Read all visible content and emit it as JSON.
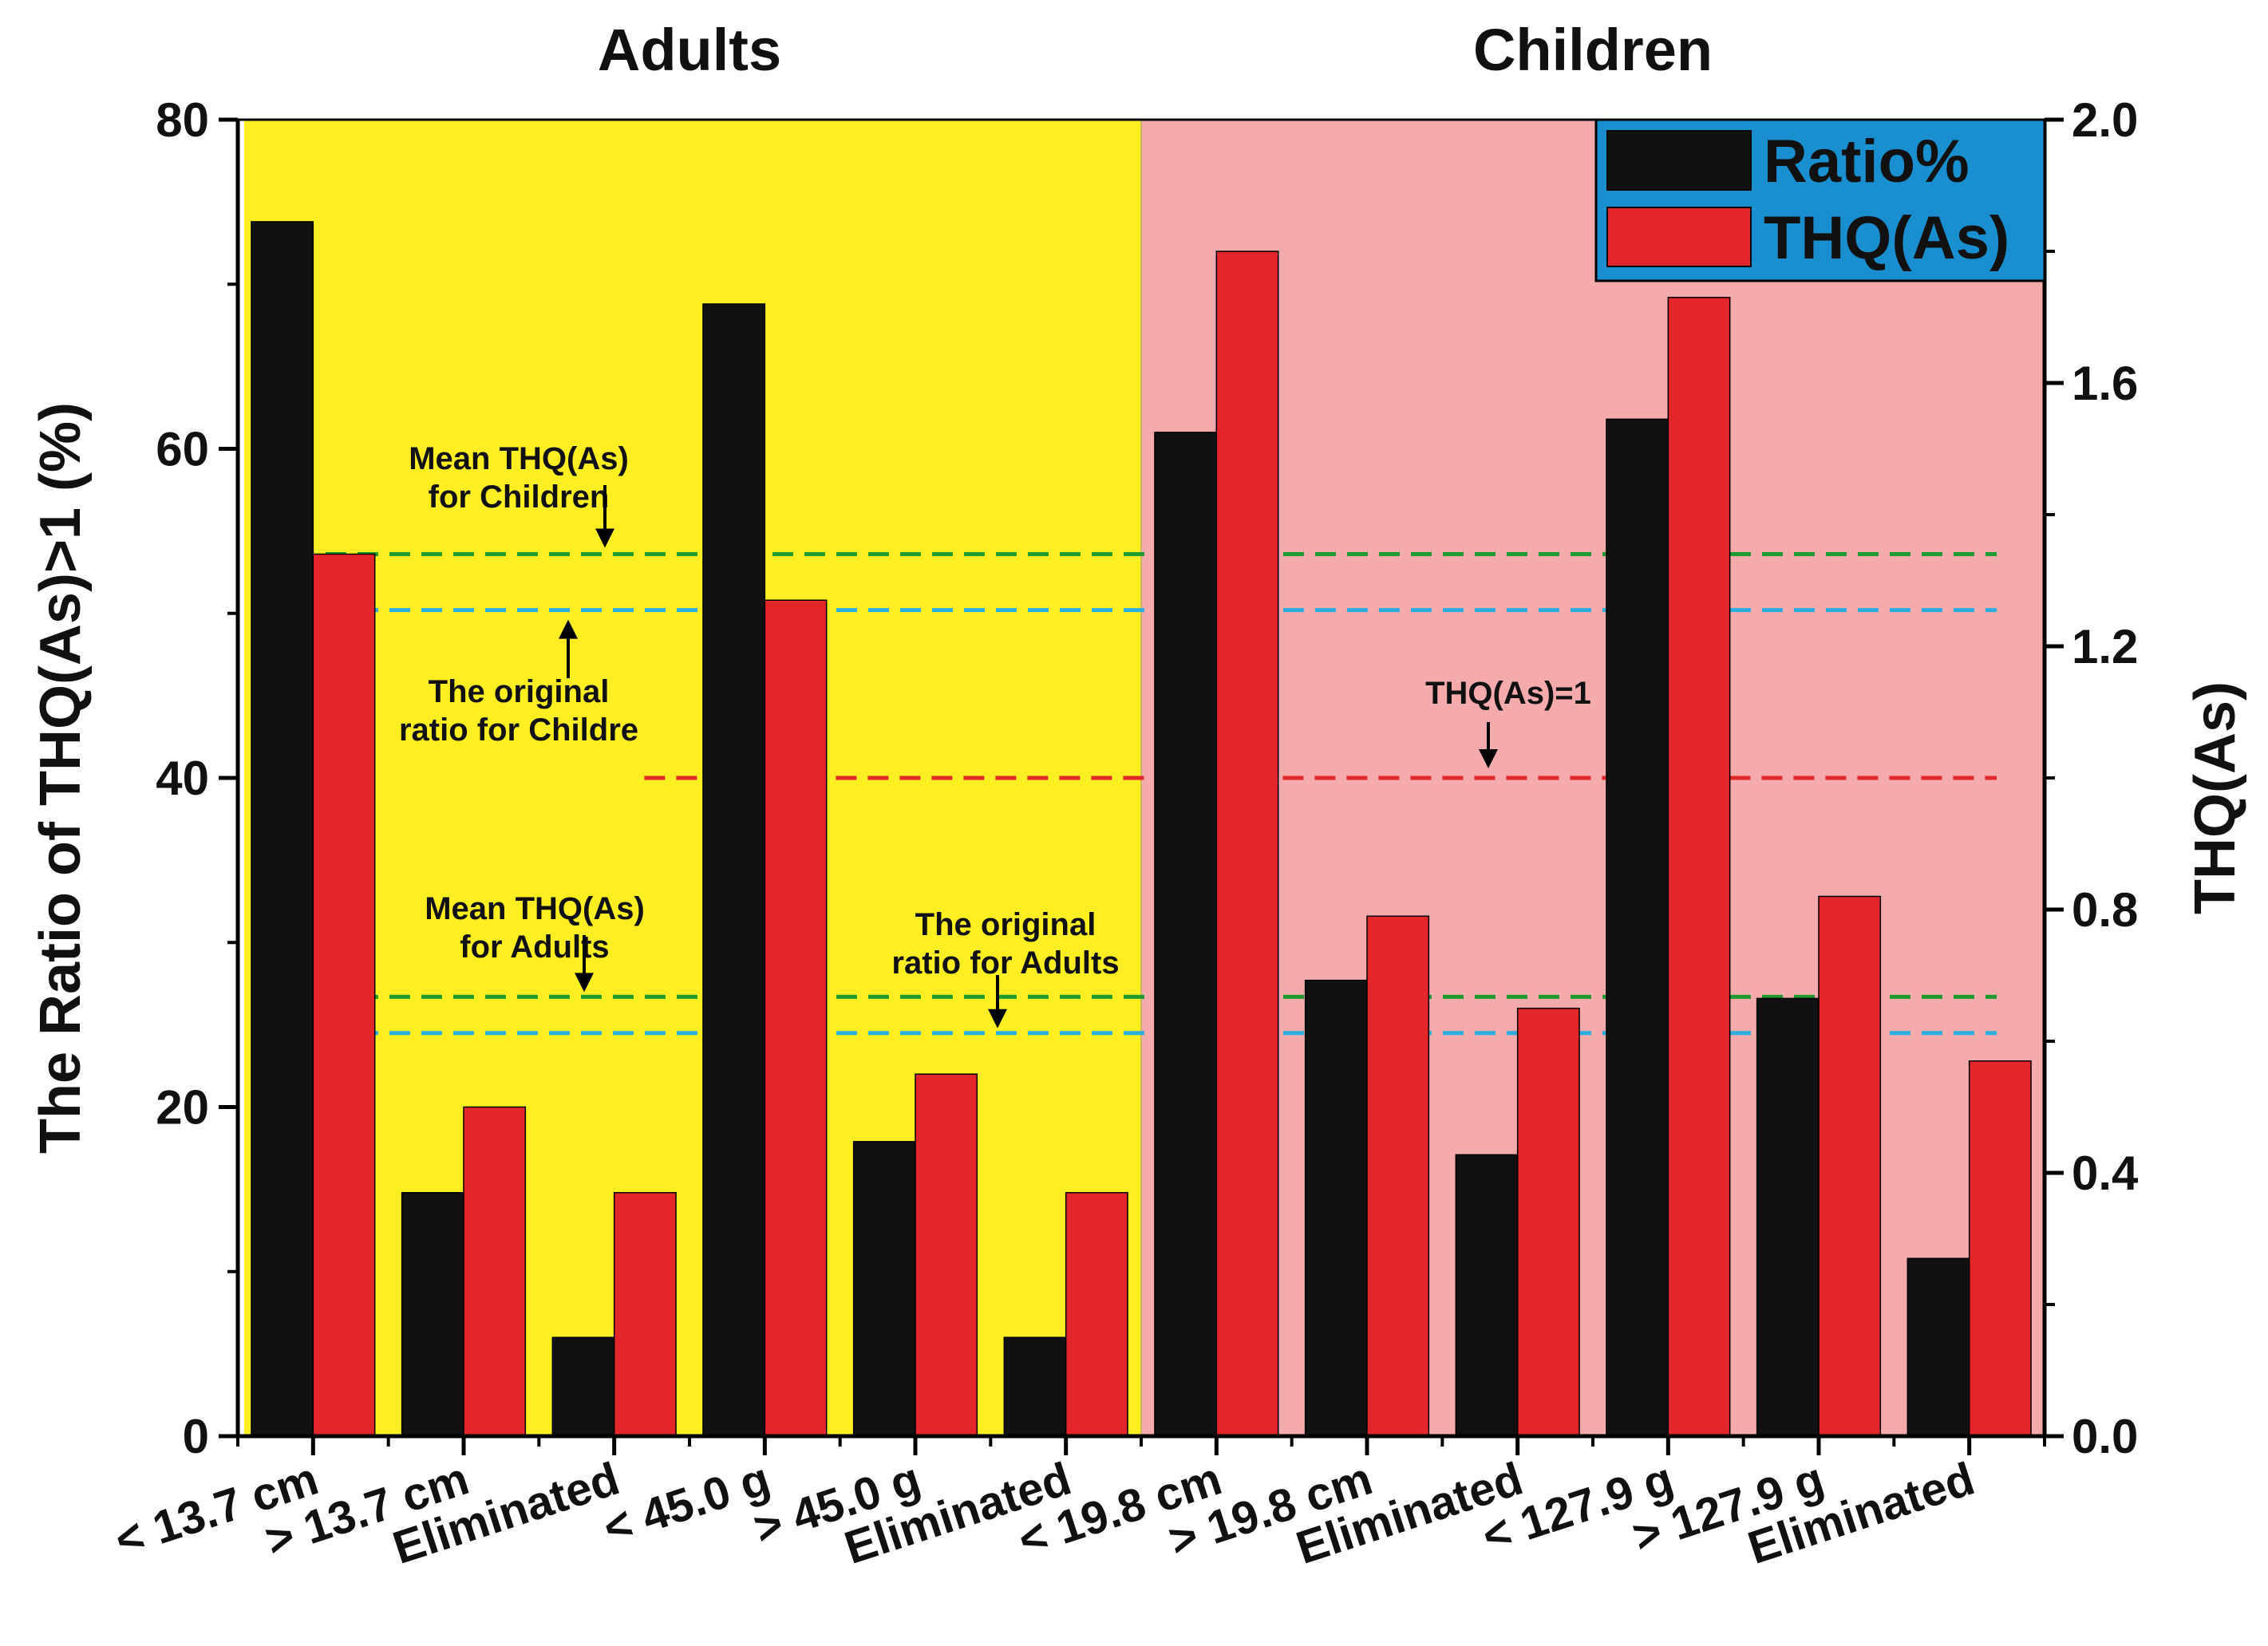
{
  "chart_data": {
    "type": "bar",
    "groups": [
      {
        "name": "Adults",
        "background": "#ffee22"
      },
      {
        "name": "Children",
        "background": "#f5aaab"
      }
    ],
    "categories": [
      "< 13.7 cm",
      "> 13.7 cm",
      "Eliminated",
      "< 45.0 g",
      "> 45.0 g",
      "Eliminated",
      "< 19.8 cm",
      "> 19.8 cm",
      "Eliminated",
      "< 127.9 g",
      "> 127.9 g",
      "Eliminated"
    ],
    "series": [
      {
        "name": "Ratio%",
        "axis": "left",
        "color": "#111111",
        "values": [
          73.8,
          14.8,
          6.0,
          68.8,
          17.9,
          6.0,
          61.0,
          27.7,
          17.1,
          61.8,
          26.6,
          10.8
        ]
      },
      {
        "name": "THQ(As)",
        "axis": "right",
        "color": "#e3262a",
        "values": [
          1.34,
          0.5,
          0.37,
          1.27,
          0.55,
          0.37,
          1.8,
          0.79,
          0.65,
          1.73,
          0.82,
          0.57
        ]
      }
    ],
    "ylabel": "The Ratio of THQ(As)>1 (%)",
    "y2label": "THQ(As)",
    "ylim": [
      0,
      80
    ],
    "y2lim": [
      0,
      2.0
    ],
    "yticks": [
      0,
      20,
      40,
      60,
      80
    ],
    "yticks_minor": [
      10,
      30,
      50,
      70
    ],
    "y2ticks": [
      0.0,
      0.4,
      0.8,
      1.2,
      1.6,
      2.0
    ],
    "y2tick_labels": [
      "0.0",
      "0.4",
      "0.8",
      "1.2",
      "1.6",
      "2.0"
    ],
    "reference_lines": [
      {
        "axis": "left",
        "value": 53.6,
        "color": "#1f9a2f",
        "span": "all"
      },
      {
        "axis": "left",
        "value": 50.2,
        "color": "#2aaee0",
        "span": "all"
      },
      {
        "axis": "left",
        "value": 40.0,
        "color": "#e3262a",
        "span": "from_category_3"
      },
      {
        "axis": "left",
        "value": 26.7,
        "color": "#1f9a2f",
        "span": "all"
      },
      {
        "axis": "left",
        "value": 24.5,
        "color": "#2aaee0",
        "span": "all"
      }
    ],
    "annotations": [
      {
        "lines": [
          "Mean THQ(As)",
          "for Children"
        ],
        "arrow_to": 53.6,
        "direction": "down"
      },
      {
        "lines": [
          "The original",
          "ratio for Childre"
        ],
        "arrow_to": 50.2,
        "direction": "up"
      },
      {
        "lines": [
          "THQ(As)=1"
        ],
        "arrow_to": 40.0,
        "direction": "down"
      },
      {
        "lines": [
          "Mean THQ(As)",
          "for Adults"
        ],
        "arrow_to": 26.7,
        "direction": "down"
      },
      {
        "lines": [
          "The original",
          "ratio for Adults"
        ],
        "arrow_to": 24.5,
        "direction": "down"
      }
    ],
    "legend": {
      "position": "top-right",
      "background": "#1a8fd0",
      "entries": [
        "Ratio%",
        "THQ(As)"
      ]
    }
  }
}
